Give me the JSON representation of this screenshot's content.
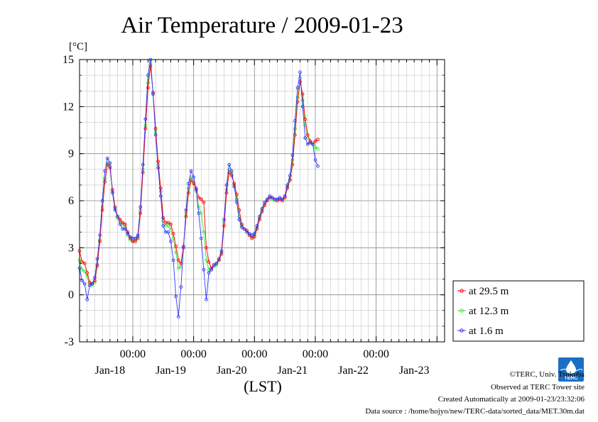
{
  "chart_data": {
    "type": "line",
    "title": "Air Temperature / 2009-01-23",
    "ylabel": "[°C]",
    "xlabel": "(LST)",
    "ylim": [
      -3,
      15
    ],
    "yticks": [
      -3,
      0,
      3,
      6,
      9,
      12,
      15
    ],
    "xlim": [
      0,
      144
    ],
    "time_ticks": [
      {
        "x": 21,
        "label": "00:00"
      },
      {
        "x": 45,
        "label": "00:00"
      },
      {
        "x": 69,
        "label": "00:00"
      },
      {
        "x": 93,
        "label": "00:00"
      },
      {
        "x": 117,
        "label": "00:00"
      }
    ],
    "date_labels": [
      {
        "x": 12,
        "label": "Jan-18"
      },
      {
        "x": 36,
        "label": "Jan-19"
      },
      {
        "x": 60,
        "label": "Jan-20"
      },
      {
        "x": 84,
        "label": "Jan-21"
      },
      {
        "x": 108,
        "label": "Jan-22"
      },
      {
        "x": 132,
        "label": "Jan-23"
      }
    ],
    "grid": true,
    "legend_position": "right",
    "series": [
      {
        "name": "at 29.5 m",
        "color": "#ff0000",
        "points": [
          [
            0,
            2.8
          ],
          [
            1,
            2.1
          ],
          [
            2,
            2.0
          ],
          [
            3,
            1.4
          ],
          [
            4,
            0.8
          ],
          [
            5,
            0.7
          ],
          [
            6,
            0.9
          ],
          [
            7,
            1.9
          ],
          [
            8,
            3.4
          ],
          [
            9,
            5.4
          ],
          [
            10,
            7.2
          ],
          [
            11,
            8.3
          ],
          [
            12,
            8.1
          ],
          [
            13,
            6.7
          ],
          [
            14,
            5.6
          ],
          [
            15,
            5.0
          ],
          [
            16,
            4.8
          ],
          [
            17,
            4.6
          ],
          [
            18,
            4.5
          ],
          [
            19,
            4.0
          ],
          [
            20,
            3.6
          ],
          [
            21,
            3.4
          ],
          [
            22,
            3.4
          ],
          [
            23,
            3.6
          ],
          [
            24,
            5.2
          ],
          [
            25,
            7.8
          ],
          [
            26,
            10.6
          ],
          [
            27,
            13.2
          ],
          [
            28,
            14.6
          ],
          [
            29,
            12.9
          ],
          [
            30,
            10.6
          ],
          [
            31,
            8.5
          ],
          [
            32,
            6.8
          ],
          [
            33,
            4.9
          ],
          [
            34,
            4.6
          ],
          [
            35,
            4.6
          ],
          [
            36,
            4.5
          ],
          [
            37,
            3.9
          ],
          [
            38,
            3.1
          ],
          [
            39,
            2.2
          ],
          [
            40,
            2.0
          ],
          [
            41,
            3.1
          ],
          [
            42,
            5.0
          ],
          [
            43,
            6.5
          ],
          [
            44,
            7.3
          ],
          [
            45,
            7.1
          ],
          [
            46,
            6.8
          ],
          [
            47,
            6.2
          ],
          [
            48,
            6.1
          ],
          [
            49,
            5.9
          ],
          [
            50,
            3.0
          ],
          [
            51,
            2.1
          ],
          [
            52,
            1.7
          ],
          [
            53,
            1.9
          ],
          [
            54,
            2.0
          ],
          [
            55,
            2.2
          ],
          [
            56,
            2.6
          ],
          [
            57,
            4.4
          ],
          [
            58,
            6.5
          ],
          [
            59,
            7.8
          ],
          [
            60,
            7.6
          ],
          [
            61,
            7.1
          ],
          [
            62,
            6.4
          ],
          [
            63,
            5.4
          ],
          [
            64,
            4.5
          ],
          [
            65,
            4.2
          ],
          [
            66,
            4.1
          ],
          [
            67,
            3.8
          ],
          [
            68,
            3.6
          ],
          [
            69,
            3.7
          ],
          [
            70,
            4.2
          ],
          [
            71,
            4.8
          ],
          [
            72,
            5.3
          ],
          [
            73,
            5.7
          ],
          [
            74,
            6.0
          ],
          [
            75,
            6.2
          ],
          [
            76,
            6.2
          ],
          [
            77,
            6.1
          ],
          [
            78,
            6.0
          ],
          [
            79,
            6.1
          ],
          [
            80,
            6.0
          ],
          [
            81,
            6.2
          ],
          [
            82,
            6.8
          ],
          [
            83,
            7.3
          ],
          [
            84,
            8.3
          ],
          [
            85,
            10.2
          ],
          [
            86,
            12.3
          ],
          [
            87,
            13.6
          ],
          [
            88,
            12.8
          ],
          [
            89,
            11.2
          ],
          [
            90,
            10.2
          ],
          [
            91,
            9.8
          ],
          [
            92,
            9.6
          ],
          [
            93,
            9.8
          ],
          [
            94,
            9.9
          ]
        ]
      },
      {
        "name": "at 12.3 m",
        "color": "#33ee33",
        "points": [
          [
            0,
            2.2
          ],
          [
            1,
            1.6
          ],
          [
            2,
            1.5
          ],
          [
            3,
            1.2
          ],
          [
            4,
            0.6
          ],
          [
            5,
            0.6
          ],
          [
            6,
            0.8
          ],
          [
            7,
            1.8
          ],
          [
            8,
            3.5
          ],
          [
            9,
            5.6
          ],
          [
            10,
            7.4
          ],
          [
            11,
            8.4
          ],
          [
            12,
            8.2
          ],
          [
            13,
            6.6
          ],
          [
            14,
            5.5
          ],
          [
            15,
            4.9
          ],
          [
            16,
            4.7
          ],
          [
            17,
            4.5
          ],
          [
            18,
            4.3
          ],
          [
            19,
            3.8
          ],
          [
            20,
            3.5
          ],
          [
            21,
            3.4
          ],
          [
            22,
            3.5
          ],
          [
            23,
            3.7
          ],
          [
            24,
            5.4
          ],
          [
            25,
            8.0
          ],
          [
            26,
            10.8
          ],
          [
            27,
            13.5
          ],
          [
            28,
            14.8
          ],
          [
            29,
            12.8
          ],
          [
            30,
            10.4
          ],
          [
            31,
            8.3
          ],
          [
            32,
            6.6
          ],
          [
            33,
            4.7
          ],
          [
            34,
            4.4
          ],
          [
            35,
            4.4
          ],
          [
            36,
            4.2
          ],
          [
            37,
            3.6
          ],
          [
            38,
            2.7
          ],
          [
            39,
            1.7
          ],
          [
            40,
            1.8
          ],
          [
            41,
            3.0
          ],
          [
            42,
            5.2
          ],
          [
            43,
            6.8
          ],
          [
            44,
            7.5
          ],
          [
            45,
            7.2
          ],
          [
            46,
            6.6
          ],
          [
            47,
            5.6
          ],
          [
            48,
            5.2
          ],
          [
            49,
            4.0
          ],
          [
            50,
            2.2
          ],
          [
            51,
            1.6
          ],
          [
            52,
            1.6
          ],
          [
            53,
            1.8
          ],
          [
            54,
            1.9
          ],
          [
            55,
            2.2
          ],
          [
            56,
            2.7
          ],
          [
            57,
            4.6
          ],
          [
            58,
            6.7
          ],
          [
            59,
            8.0
          ],
          [
            60,
            7.7
          ],
          [
            61,
            7.0
          ],
          [
            62,
            6.1
          ],
          [
            63,
            5.0
          ],
          [
            64,
            4.4
          ],
          [
            65,
            4.2
          ],
          [
            66,
            4.0
          ],
          [
            67,
            3.8
          ],
          [
            68,
            3.7
          ],
          [
            69,
            3.8
          ],
          [
            70,
            4.3
          ],
          [
            71,
            4.9
          ],
          [
            72,
            5.4
          ],
          [
            73,
            5.8
          ],
          [
            74,
            6.0
          ],
          [
            75,
            6.2
          ],
          [
            76,
            6.1
          ],
          [
            77,
            6.0
          ],
          [
            78,
            6.0
          ],
          [
            79,
            6.1
          ],
          [
            80,
            6.0
          ],
          [
            81,
            6.2
          ],
          [
            82,
            6.9
          ],
          [
            83,
            7.4
          ],
          [
            84,
            8.6
          ],
          [
            85,
            10.6
          ],
          [
            86,
            12.6
          ],
          [
            87,
            13.8
          ],
          [
            88,
            12.4
          ],
          [
            89,
            10.8
          ],
          [
            90,
            10.0
          ],
          [
            91,
            9.8
          ],
          [
            92,
            9.7
          ],
          [
            93,
            9.4
          ],
          [
            94,
            9.3
          ]
        ]
      },
      {
        "name": "at 1.6 m",
        "color": "#3333ff",
        "points": [
          [
            0,
            1.7
          ],
          [
            1,
            0.9
          ],
          [
            2,
            0.7
          ],
          [
            3,
            -0.3
          ],
          [
            4,
            0.6
          ],
          [
            5,
            0.7
          ],
          [
            6,
            1.1
          ],
          [
            7,
            2.3
          ],
          [
            8,
            3.8
          ],
          [
            9,
            6.0
          ],
          [
            10,
            7.9
          ],
          [
            11,
            8.7
          ],
          [
            12,
            8.4
          ],
          [
            13,
            6.5
          ],
          [
            14,
            5.4
          ],
          [
            15,
            5.0
          ],
          [
            16,
            4.5
          ],
          [
            17,
            4.2
          ],
          [
            18,
            4.2
          ],
          [
            19,
            3.9
          ],
          [
            20,
            3.7
          ],
          [
            21,
            3.6
          ],
          [
            22,
            3.6
          ],
          [
            23,
            3.8
          ],
          [
            24,
            5.6
          ],
          [
            25,
            8.3
          ],
          [
            26,
            11.2
          ],
          [
            27,
            14.0
          ],
          [
            28,
            15.0
          ],
          [
            29,
            12.8
          ],
          [
            30,
            10.2
          ],
          [
            31,
            8.1
          ],
          [
            32,
            6.3
          ],
          [
            33,
            4.4
          ],
          [
            34,
            4.0
          ],
          [
            35,
            4.0
          ],
          [
            36,
            3.4
          ],
          [
            37,
            2.2
          ],
          [
            38,
            -0.1
          ],
          [
            39,
            -1.4
          ],
          [
            40,
            0.5
          ],
          [
            41,
            3.0
          ],
          [
            42,
            5.4
          ],
          [
            43,
            7.1
          ],
          [
            44,
            7.9
          ],
          [
            45,
            7.5
          ],
          [
            46,
            6.7
          ],
          [
            47,
            5.2
          ],
          [
            48,
            3.6
          ],
          [
            49,
            1.6
          ],
          [
            50,
            -0.3
          ],
          [
            51,
            1.4
          ],
          [
            52,
            1.6
          ],
          [
            53,
            1.9
          ],
          [
            54,
            2.0
          ],
          [
            55,
            2.3
          ],
          [
            56,
            2.8
          ],
          [
            57,
            4.8
          ],
          [
            58,
            7.0
          ],
          [
            59,
            8.3
          ],
          [
            60,
            7.9
          ],
          [
            61,
            6.9
          ],
          [
            62,
            5.9
          ],
          [
            63,
            4.8
          ],
          [
            64,
            4.3
          ],
          [
            65,
            4.2
          ],
          [
            66,
            4.0
          ],
          [
            67,
            3.9
          ],
          [
            68,
            3.8
          ],
          [
            69,
            3.9
          ],
          [
            70,
            4.4
          ],
          [
            71,
            5.0
          ],
          [
            72,
            5.5
          ],
          [
            73,
            5.9
          ],
          [
            74,
            6.1
          ],
          [
            75,
            6.3
          ],
          [
            76,
            6.2
          ],
          [
            77,
            6.1
          ],
          [
            78,
            6.1
          ],
          [
            79,
            6.2
          ],
          [
            80,
            6.1
          ],
          [
            81,
            6.3
          ],
          [
            82,
            7.0
          ],
          [
            83,
            7.6
          ],
          [
            84,
            8.9
          ],
          [
            85,
            11.1
          ],
          [
            86,
            13.2
          ],
          [
            87,
            14.2
          ],
          [
            88,
            12.0
          ],
          [
            89,
            10.0
          ],
          [
            90,
            9.6
          ],
          [
            91,
            9.7
          ],
          [
            92,
            9.6
          ],
          [
            93,
            8.6
          ],
          [
            94,
            8.2
          ]
        ]
      }
    ]
  },
  "legend": {
    "items": [
      "at 29.5 m",
      "at 12.3 m",
      "at 1.6 m"
    ]
  },
  "credits": {
    "copyright": "©TERC, Univ. Tsukuba",
    "observed": "Observed at TERC Tower site",
    "created": "Created Automatically at 2009-01-23/23:32:06",
    "source": "Data source : /home/hojyo/new/TERC-data/sorted_data/MET.30m.dat"
  },
  "logo": {
    "text": "TERC",
    "color": "#1a6fc4"
  }
}
